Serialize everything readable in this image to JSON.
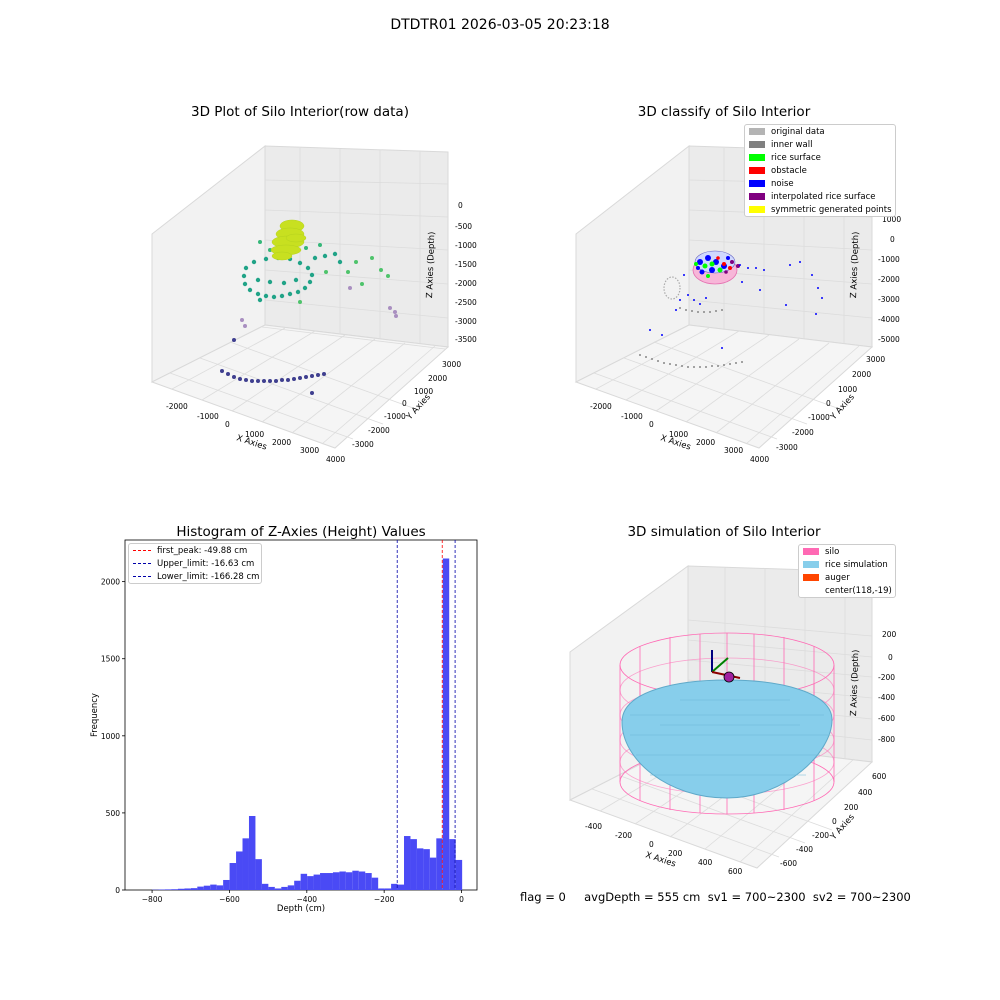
{
  "figure": {
    "suptitle": "DTDTR01 2026-03-05 20:23:18",
    "footer": "flag = 0     avgDepth = 555 cm  sv1 = 700~2300  sv2 = 700~2300"
  },
  "panels": {
    "p1": {
      "title": "3D Plot of Silo Interior(row data)",
      "xlabel": "X Axies",
      "ylabel": "Y Axies",
      "zlabel": "Z Axies (Depth)",
      "xticks": [
        "-2000",
        "-1000",
        "0",
        "1000",
        "2000",
        "3000",
        "4000"
      ],
      "yticks": [
        "3000",
        "2000",
        "1000",
        "0",
        "-1000",
        "-2000",
        "-3000"
      ],
      "zticks": [
        "0",
        "-500",
        "-1000",
        "-1500",
        "-2000",
        "-2500",
        "-3000",
        "-3500"
      ]
    },
    "p2": {
      "title": "3D classify of Silo Interior",
      "xlabel": "X Axies",
      "ylabel": "Y Axies",
      "zlabel": "Z Axies (Depth)",
      "xticks": [
        "-2000",
        "-1000",
        "0",
        "1000",
        "2000",
        "3000",
        "4000"
      ],
      "yticks": [
        "3000",
        "2000",
        "1000",
        "0",
        "-1000",
        "-2000",
        "-3000"
      ],
      "zticks": [
        "1000",
        "0",
        "-1000",
        "-2000",
        "-3000",
        "-4000",
        "-5000"
      ],
      "legend": [
        {
          "label": "original data",
          "color": "#b4b4b4"
        },
        {
          "label": "inner wall",
          "color": "#808080"
        },
        {
          "label": "rice surface",
          "color": "#00ff00"
        },
        {
          "label": "obstacle",
          "color": "#ff0000"
        },
        {
          "label": "noise",
          "color": "#0000ff"
        },
        {
          "label": "interpolated rice surface",
          "color": "#800080"
        },
        {
          "label": "symmetric generated points",
          "color": "#ffff00"
        }
      ]
    },
    "p4": {
      "title": "3D simulation of Silo Interior",
      "xlabel": "X Axies",
      "ylabel": "Y Axies",
      "zlabel": "Z Axies (Depth)",
      "xticks": [
        "-400",
        "-200",
        "0",
        "200",
        "400",
        "600"
      ],
      "yticks": [
        "600",
        "400",
        "200",
        "0",
        "-200",
        "-400",
        "-600"
      ],
      "zticks": [
        "200",
        "0",
        "-200",
        "-400",
        "-600",
        "-800"
      ],
      "legend": [
        {
          "label": "silo",
          "color": "#ff69b4"
        },
        {
          "label": "rice simulation",
          "color": "#87ceeb"
        },
        {
          "label": "auger",
          "color": "#ff4500"
        },
        {
          "label": "center(118,-19)",
          "color": ""
        }
      ]
    }
  },
  "chart_data": [
    {
      "type": "bar",
      "title": "Histogram of Z-Axies (Height) Values",
      "xlabel": "Depth (cm)",
      "ylabel": "Frequency",
      "xlim": [
        -870,
        40
      ],
      "ylim": [
        0,
        2270
      ],
      "xticks": [
        -800,
        -600,
        -400,
        -200,
        0
      ],
      "yticks": [
        0,
        500,
        1000,
        1500,
        2000
      ],
      "bin_width": 16.7,
      "bar_color": "#4a4af5",
      "bins_left": [
        -800,
        -783.3,
        -766.6,
        -749.9,
        -733.2,
        -716.5,
        -699.8,
        -683.1,
        -666.4,
        -649.7,
        -633,
        -616.3,
        -599.6,
        -582.9,
        -566.2,
        -549.5,
        -532.8,
        -516.1,
        -499.4,
        -482.7,
        -466,
        -449.3,
        -432.6,
        -415.9,
        -399.2,
        -382.5,
        -365.8,
        -349.1,
        -332.4,
        -315.7,
        -299,
        -282.3,
        -265.6,
        -248.9,
        -232.2,
        -215.5,
        -198.8,
        -182.1,
        -165.4,
        -148.7,
        -132,
        -115.3,
        -98.6,
        -81.9,
        -65.2,
        -48.5,
        -31.8,
        -15.1
      ],
      "counts": [
        2,
        3,
        4,
        5,
        8,
        10,
        12,
        22,
        28,
        35,
        30,
        65,
        175,
        250,
        335,
        480,
        200,
        40,
        20,
        10,
        20,
        30,
        60,
        105,
        90,
        100,
        110,
        110,
        115,
        120,
        115,
        125,
        120,
        110,
        80,
        10,
        10,
        40,
        35,
        350,
        330,
        270,
        265,
        210,
        335,
        2150,
        330,
        195
      ],
      "lines": [
        {
          "label": "first_peak: -49.88 cm",
          "x": -49.88,
          "color": "#ff0000"
        },
        {
          "label": "Upper_limit: -16.63 cm",
          "x": -16.63,
          "color": "#0000aa"
        },
        {
          "label": "Lower_limit: -166.28 cm",
          "x": -166.28,
          "color": "#0000aa"
        }
      ]
    }
  ]
}
